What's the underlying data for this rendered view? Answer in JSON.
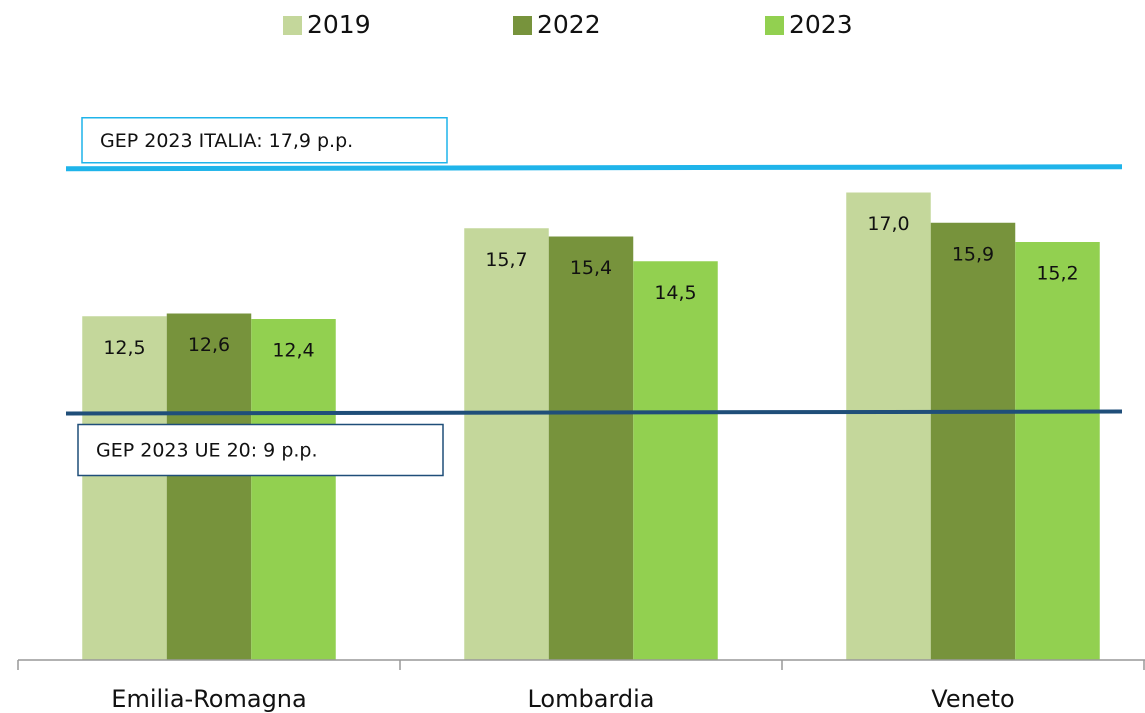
{
  "chart_data": {
    "type": "bar",
    "categories": [
      "Emilia-Romagna",
      "Lombardia",
      "Veneto"
    ],
    "series": [
      {
        "name": "2019",
        "color": "#c4d79b",
        "values": [
          12.5,
          15.7,
          17.0
        ],
        "value_labels": [
          "12,5",
          "15,7",
          "17,0"
        ]
      },
      {
        "name": "2022",
        "color": "#77933c",
        "values": [
          12.6,
          15.4,
          15.9
        ],
        "value_labels": [
          "12,6",
          "15,4",
          "15,9"
        ]
      },
      {
        "name": "2023",
        "color": "#92d050",
        "values": [
          12.4,
          14.5,
          15.2
        ],
        "value_labels": [
          "12,4",
          "14,5",
          "15,2"
        ]
      }
    ],
    "ylim": [
      0,
      20
    ],
    "legend": "top",
    "reference_lines": [
      {
        "label": "GEP 2023  ITALIA: 17,9 p.p.",
        "value": 17.9,
        "color": "#1fb4ea"
      },
      {
        "label": "GEP 2023  UE 20: 9 p.p.",
        "value": 9,
        "color": "#1f4e79"
      }
    ]
  }
}
